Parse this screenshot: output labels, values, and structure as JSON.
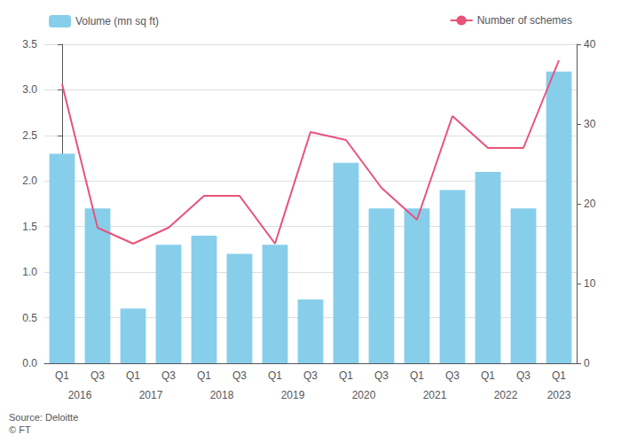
{
  "chart_data": {
    "type": "bar",
    "categories": [
      "Q1",
      "Q3",
      "Q1",
      "Q3",
      "Q1",
      "Q3",
      "Q1",
      "Q3",
      "Q1",
      "Q3",
      "Q1",
      "Q3",
      "Q1",
      "Q3",
      "Q1"
    ],
    "years": [
      "2016",
      "2016",
      "2017",
      "2017",
      "2018",
      "2018",
      "2019",
      "2019",
      "2020",
      "2020",
      "2021",
      "2021",
      "2022",
      "2022",
      "2023"
    ],
    "series": [
      {
        "name": "Volume (mn sq ft)",
        "type": "bar",
        "color": "#87CEEB",
        "values": [
          2.3,
          1.7,
          0.6,
          1.3,
          1.4,
          1.2,
          1.3,
          0.7,
          2.2,
          1.7,
          1.7,
          1.9,
          2.1,
          1.7,
          3.2
        ]
      },
      {
        "name": "Number of schemes",
        "type": "line",
        "color": "#E8537A",
        "axis": "y2",
        "values": [
          35,
          17,
          15,
          17,
          21,
          21,
          15,
          29,
          28,
          22,
          18,
          31,
          27,
          27,
          38
        ]
      }
    ],
    "ylim": [
      0,
      3.5
    ],
    "yticks": [
      {
        "value": 0,
        "label": "0.0"
      },
      0.5,
      {
        "value": 1.0,
        "label": "1.0"
      },
      1.5,
      {
        "value": 2.0,
        "label": "2.0"
      },
      2.5,
      {
        "value": 3.0,
        "label": "3.0"
      },
      3.5
    ],
    "y2lim": [
      0,
      40
    ],
    "y2ticks": [
      0,
      10,
      20,
      30,
      40
    ],
    "grid": true,
    "legend": "top",
    "annotations": [
      "Source: Deloitte\n© FT"
    ]
  }
}
